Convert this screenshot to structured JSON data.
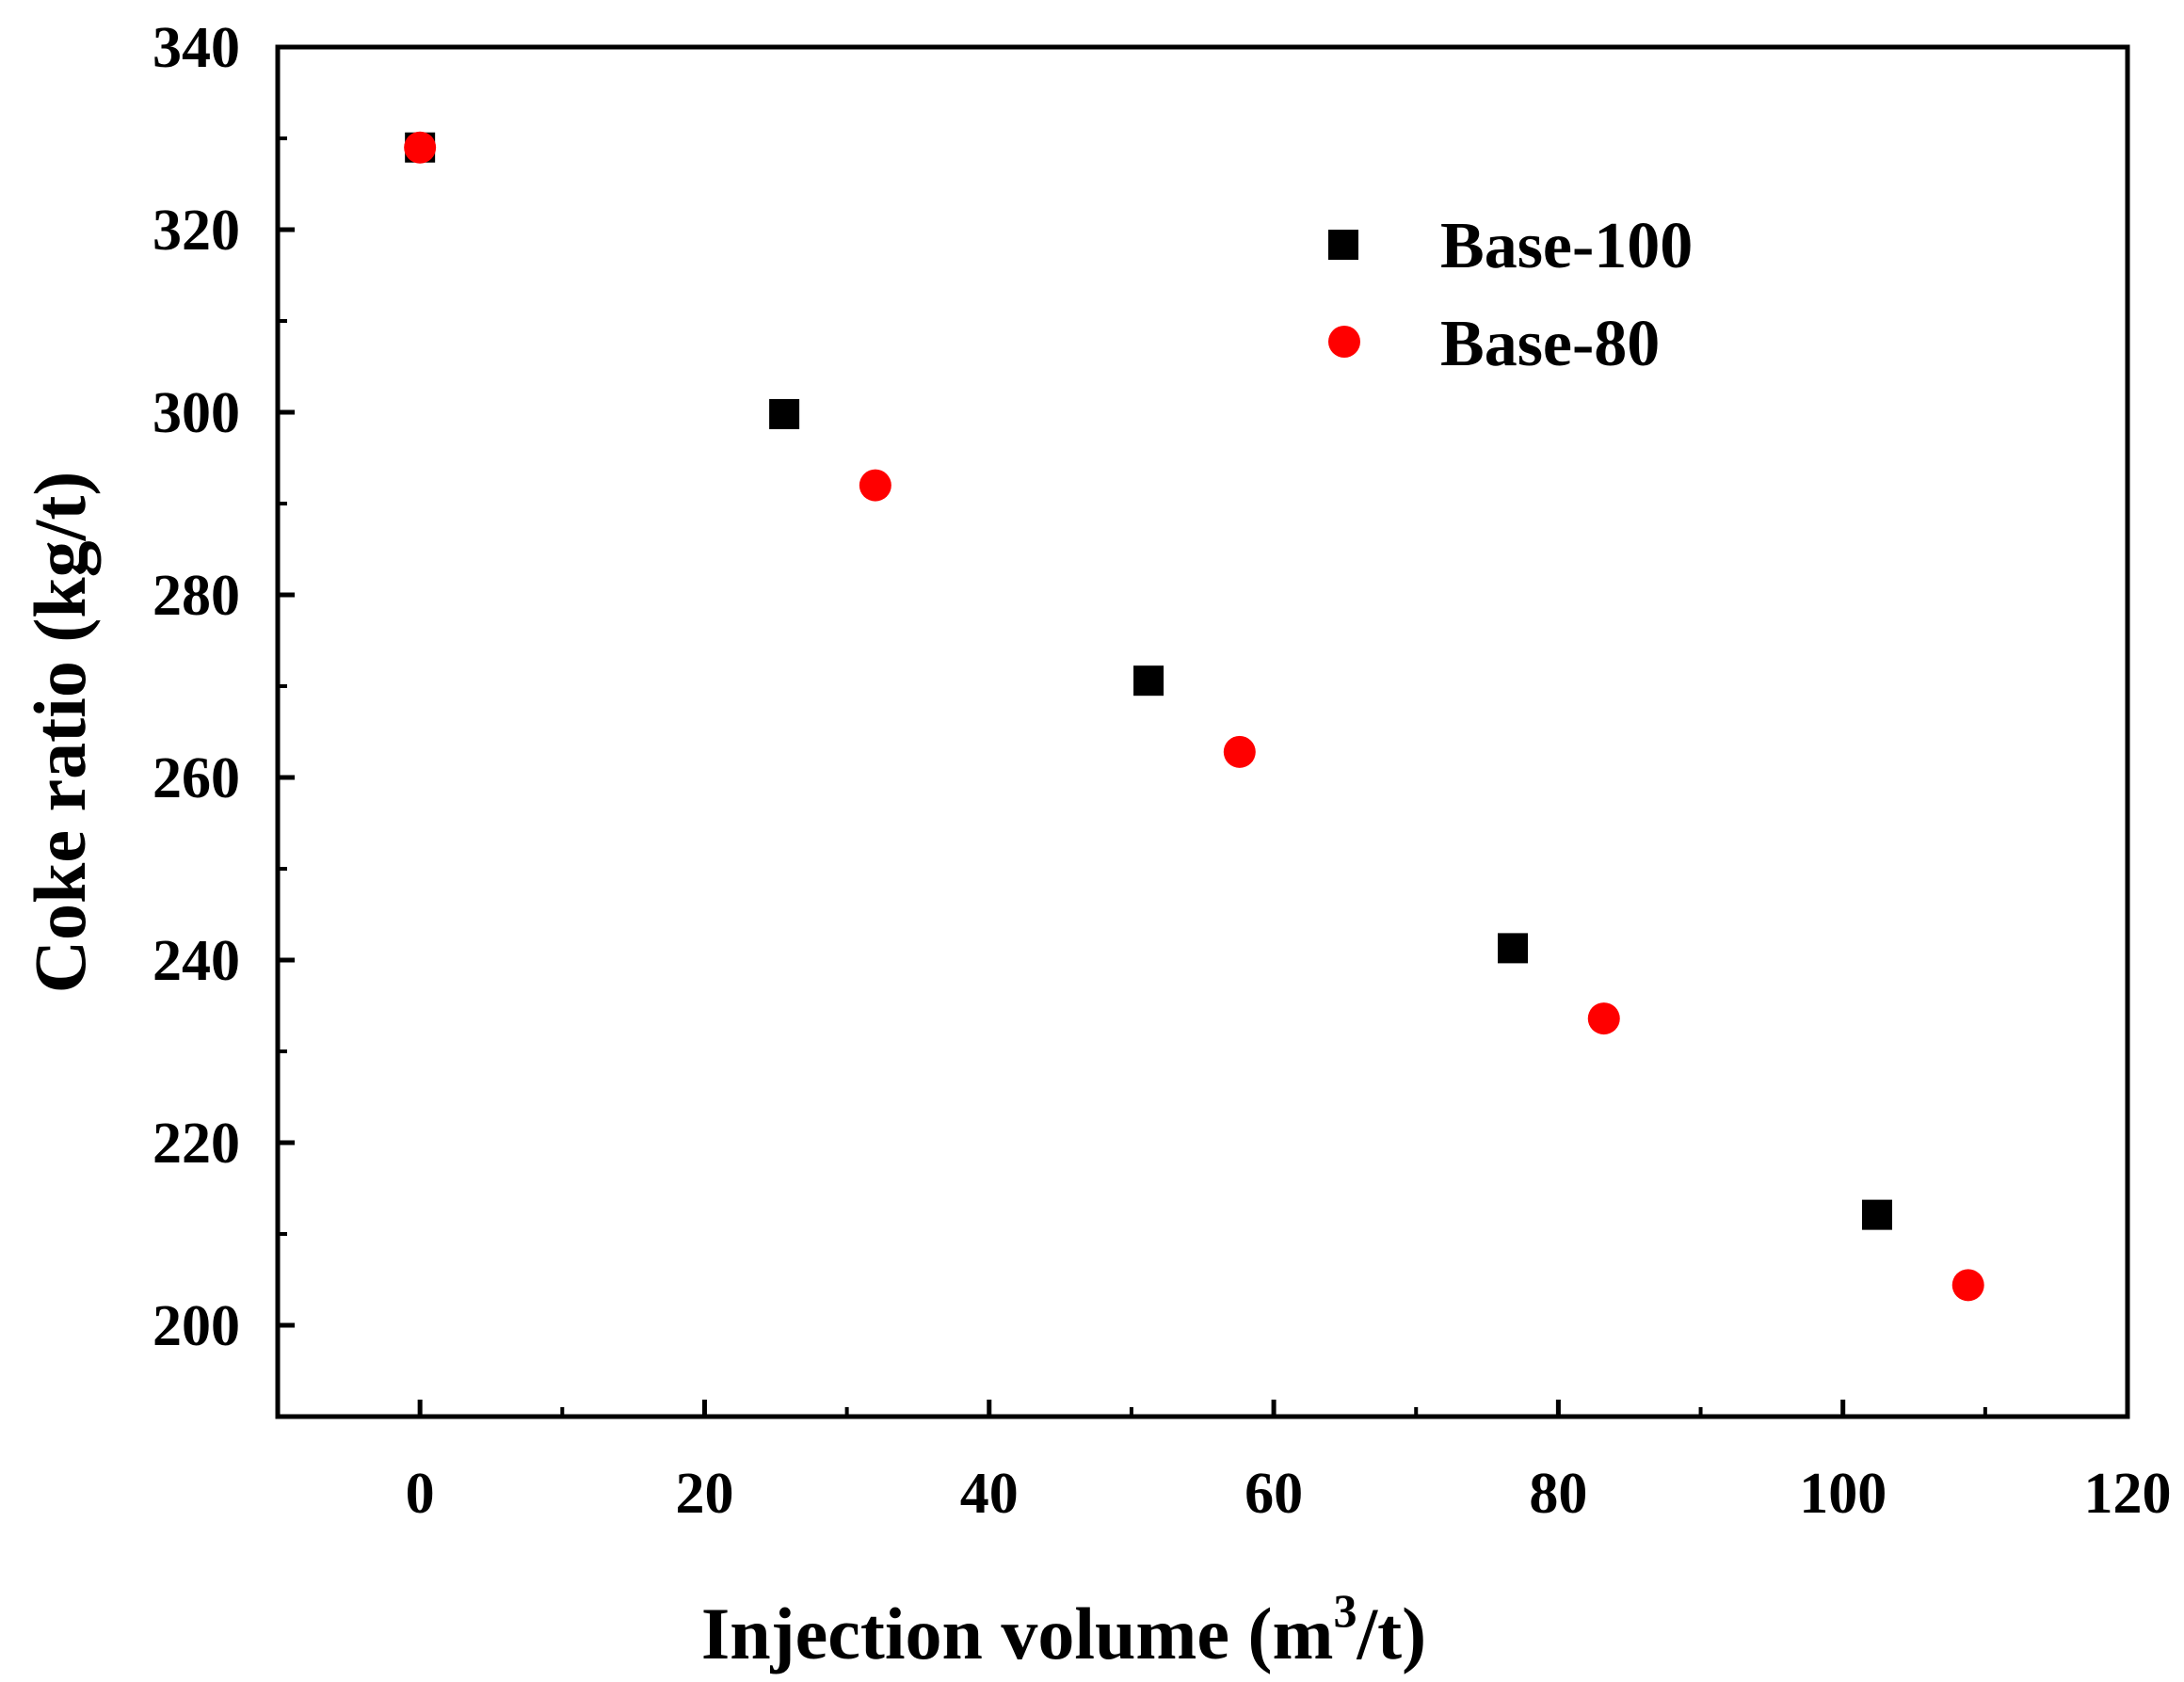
{
  "chart_data": {
    "type": "scatter",
    "title": "",
    "xlabel": "Injection volume (m3/t)",
    "xlabel_parts": {
      "main": "Injection volume (m",
      "superscript": "3",
      "tail": "/t)"
    },
    "ylabel": "Coke ratio (kg/t)",
    "xlim": [
      -10,
      120
    ],
    "ylim": [
      190,
      340
    ],
    "x_ticks": [
      0,
      20,
      40,
      60,
      80,
      100,
      120
    ],
    "y_ticks": [
      200,
      220,
      240,
      260,
      280,
      300,
      320,
      340
    ],
    "x_tick_labels": [
      "0",
      "20",
      "40",
      "60",
      "80",
      "100",
      "120"
    ],
    "y_tick_labels": [
      "200",
      "220",
      "240",
      "260",
      "280",
      "300",
      "320",
      "340"
    ],
    "legend_position": "top-right",
    "series": [
      {
        "name": "Base-100",
        "marker": "square",
        "color": "#000000",
        "x": [
          0,
          25.6,
          51.2,
          76.8,
          102.4
        ],
        "y": [
          329,
          299.8,
          270.6,
          241.3,
          212.1
        ]
      },
      {
        "name": "Base-80",
        "marker": "circle",
        "color": "#ff0000",
        "x": [
          0,
          32,
          57.6,
          83.2,
          108.8
        ],
        "y": [
          329,
          292,
          262.8,
          233.6,
          204.4
        ]
      }
    ]
  }
}
